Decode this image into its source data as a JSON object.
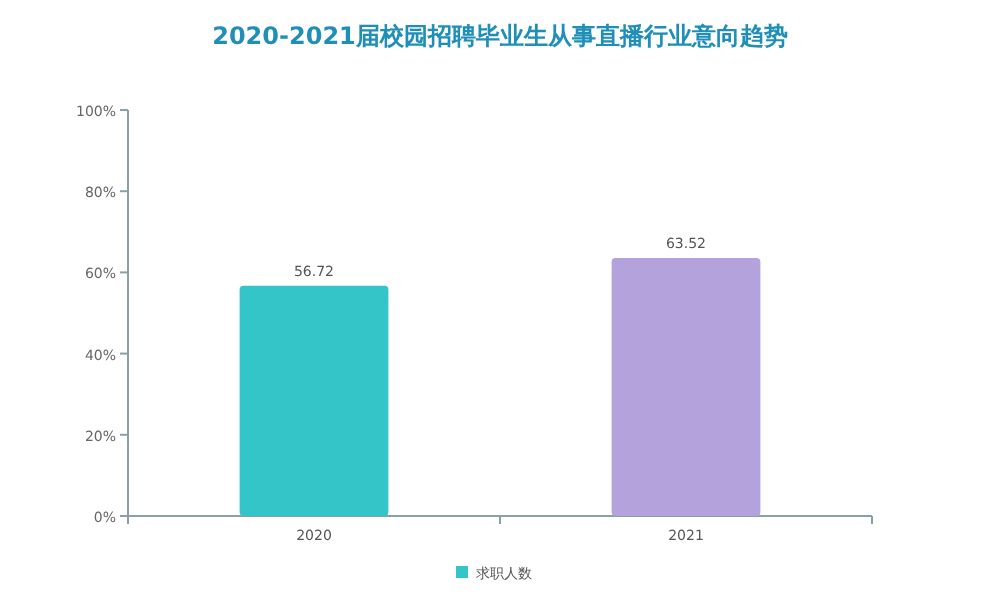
{
  "chart_data": {
    "type": "bar",
    "title": "2020-2021届校园招聘毕业生从事直播行业意向趋势",
    "categories": [
      "2020",
      "2021"
    ],
    "series": [
      {
        "name": "求职人数",
        "color": "#33c5c8",
        "colors": [
          "#33c5c8",
          "#b3a2dc"
        ],
        "values": [
          56.72,
          63.52
        ]
      }
    ],
    "ylim": [
      0,
      100
    ],
    "yticks": [
      {
        "value": 0,
        "label": "0%"
      },
      {
        "value": 20,
        "label": "20%"
      },
      {
        "value": 40,
        "label": "40%"
      },
      {
        "value": 60,
        "label": "60%"
      },
      {
        "value": 80,
        "label": "80%"
      },
      {
        "value": 100,
        "label": "100%"
      }
    ],
    "data_labels": true,
    "legend": "bottom",
    "grid": false
  }
}
